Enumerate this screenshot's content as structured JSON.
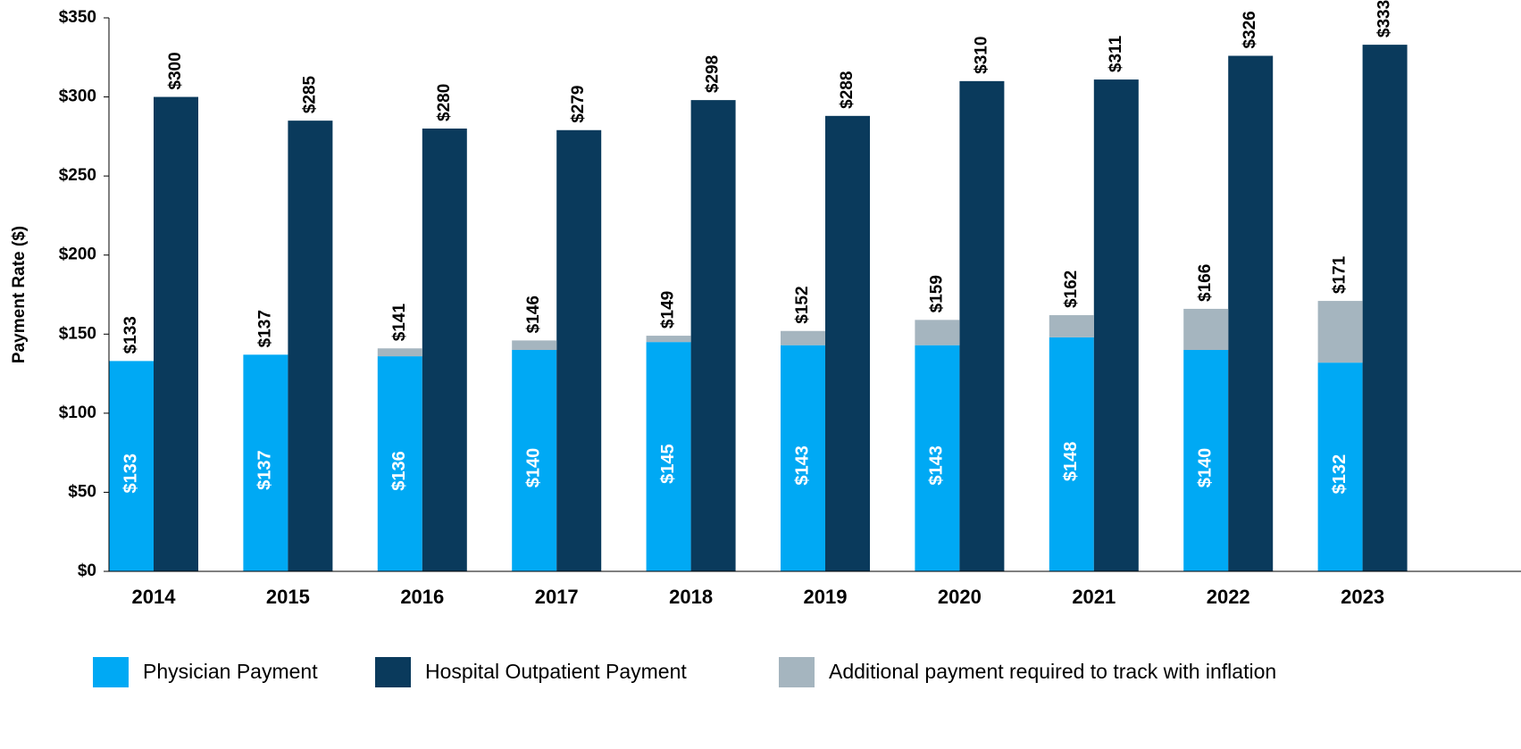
{
  "chart_data": {
    "type": "stacked_bar",
    "y_label": "Payment Rate ($)",
    "categories": [
      "2014",
      "2015",
      "2016",
      "2017",
      "2018",
      "2019",
      "2020",
      "2021",
      "2022",
      "2023"
    ],
    "ylim": [
      0,
      350
    ],
    "yticks": [
      {
        "value": 0,
        "label": "$0"
      },
      {
        "value": 50,
        "label": "$50"
      },
      {
        "value": 100,
        "label": "$100"
      },
      {
        "value": 150,
        "label": "$150"
      },
      {
        "value": 200,
        "label": "$200"
      },
      {
        "value": 250,
        "label": "$250"
      },
      {
        "value": 300,
        "label": "$300"
      },
      {
        "value": 350,
        "label": "$350"
      }
    ],
    "series": [
      {
        "name": "Physician Payment",
        "color": "#00a9f4",
        "stack": "a",
        "values": [
          133,
          137,
          136,
          140,
          145,
          143,
          143,
          148,
          140,
          132
        ],
        "value_labels": [
          "$133",
          "$137",
          "$136",
          "$140",
          "$145",
          "$143",
          "$143",
          "$148",
          "$140",
          "$132"
        ]
      },
      {
        "name": "Hospital Outpatient Payment",
        "color": "#0a3a5c",
        "stack": "b",
        "values": [
          300,
          285,
          280,
          279,
          298,
          288,
          310,
          311,
          326,
          333
        ],
        "value_labels": [
          "$300",
          "$285",
          "$280",
          "$279",
          "$298",
          "$288",
          "$310",
          "$311",
          "$326",
          "$333"
        ]
      },
      {
        "name": "Additional payment required to track with inflation",
        "color": "#a5b5bf",
        "stack": "a",
        "values": [
          0,
          0,
          5,
          6,
          4,
          9,
          16,
          14,
          26,
          39
        ]
      }
    ],
    "totals": {
      "values": [
        133,
        137,
        141,
        146,
        149,
        152,
        159,
        162,
        166,
        171
      ],
      "value_labels": [
        "$133",
        "$137",
        "$141",
        "$146",
        "$149",
        "$152",
        "$159",
        "$162",
        "$166",
        "$171"
      ]
    }
  }
}
